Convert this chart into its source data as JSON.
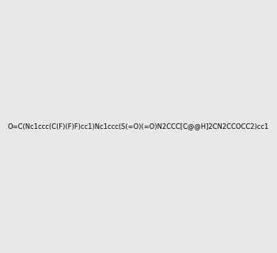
{
  "smiles": "O=C(Nc1ccc(C(F)(F)F)cc1)Nc1ccc(S(=O)(=O)N2CCC[C@@H]2CN2CCOCC2)cc1",
  "image_size": 300,
  "background_color": "#e8e8e8"
}
